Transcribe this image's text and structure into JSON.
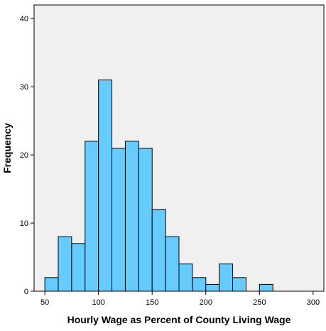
{
  "chart_data": {
    "type": "bar",
    "title": "",
    "xlabel": "Hourly Wage as Percent of County Living Wage",
    "ylabel": "Frequency",
    "xlim": [
      40,
      310
    ],
    "ylim": [
      0,
      42
    ],
    "x_ticks": [
      50,
      100,
      150,
      200,
      250,
      300
    ],
    "y_ticks": [
      0,
      10,
      20,
      30,
      40
    ],
    "bin_width": 12.5,
    "bins": [
      {
        "start": 50,
        "value": 2
      },
      {
        "start": 62.5,
        "value": 8
      },
      {
        "start": 75,
        "value": 7
      },
      {
        "start": 87.5,
        "value": 22
      },
      {
        "start": 100,
        "value": 31
      },
      {
        "start": 112.5,
        "value": 21
      },
      {
        "start": 125,
        "value": 22
      },
      {
        "start": 137.5,
        "value": 21
      },
      {
        "start": 150,
        "value": 12
      },
      {
        "start": 162.5,
        "value": 8
      },
      {
        "start": 175,
        "value": 4
      },
      {
        "start": 187.5,
        "value": 2
      },
      {
        "start": 200,
        "value": 1
      },
      {
        "start": 212.5,
        "value": 4
      },
      {
        "start": 225,
        "value": 2
      },
      {
        "start": 250,
        "value": 1
      }
    ],
    "colors": {
      "plot_background": "#f0f0f0",
      "bar_fill": "#66ccff",
      "bar_stroke": "#000000",
      "axis": "#000000"
    },
    "grid": false,
    "legend": "none"
  }
}
